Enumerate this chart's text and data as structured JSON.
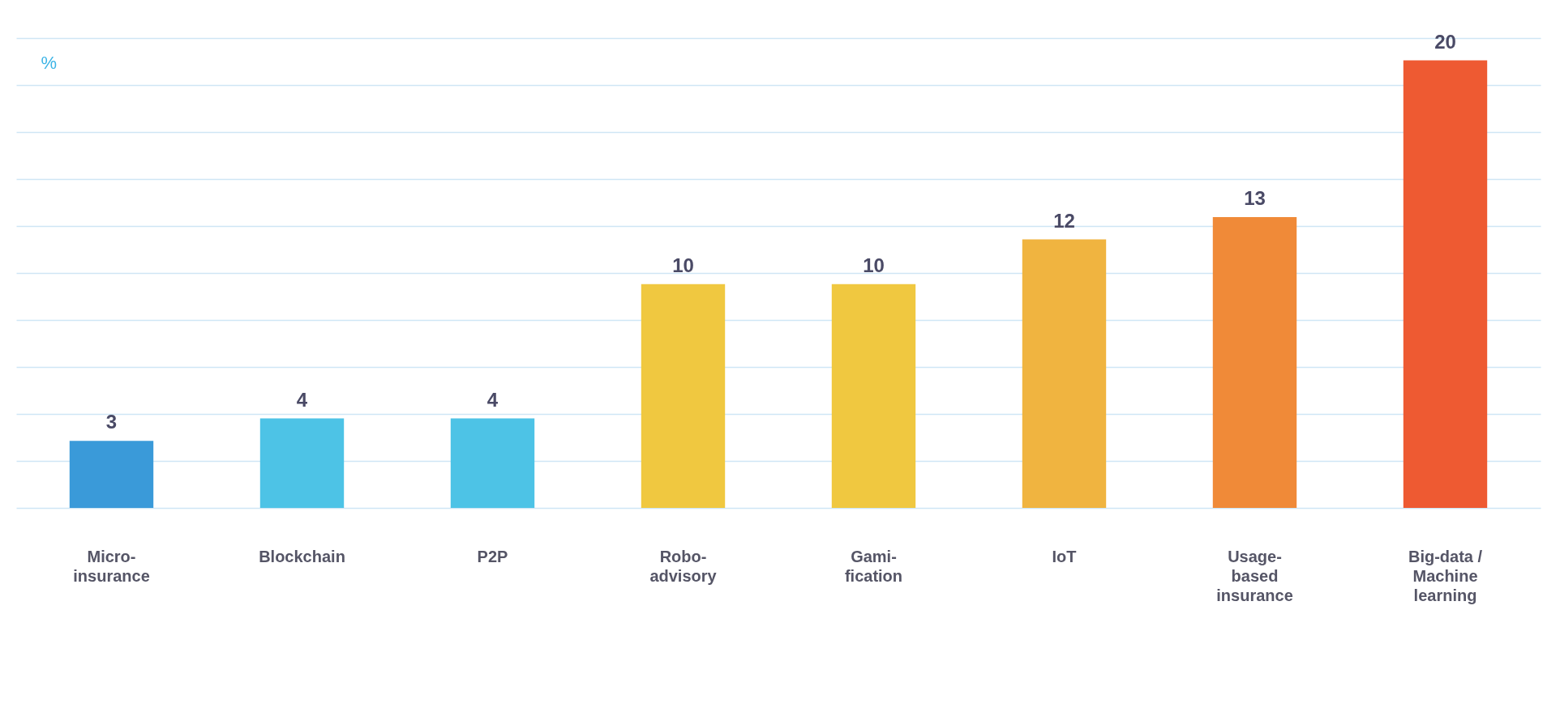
{
  "chart_data": {
    "type": "bar",
    "ylabel": "%",
    "categories": [
      "Micro-\ninsurance",
      "Blockchain",
      "P2P",
      "Robo-\nadvisory",
      "Gami-\nfication",
      "IoT",
      "Usage-\nbased\ninsurance",
      "Big-data /\nMachine\nlearning"
    ],
    "values": [
      3,
      4,
      4,
      10,
      10,
      12,
      13,
      20
    ],
    "colors": [
      "#3a9ad9",
      "#4dc3e6",
      "#4dc3e6",
      "#f0c840",
      "#f0c840",
      "#f0b440",
      "#f08a38",
      "#ee5a32"
    ],
    "ylim": [
      0,
      21
    ],
    "yticks": [
      {
        "value": 0,
        "label": null
      },
      {
        "value": 2.1,
        "label": null
      },
      {
        "value": 4.2,
        "label": null
      },
      {
        "value": 6.3,
        "label": null
      },
      {
        "value": 8.4,
        "label": null
      },
      {
        "value": 10.5,
        "label": null
      },
      {
        "value": 12.6,
        "label": null
      },
      {
        "value": 14.7,
        "label": null
      },
      {
        "value": 16.8,
        "label": null
      },
      {
        "value": 18.9,
        "label": null
      },
      {
        "value": 21,
        "label": null
      }
    ],
    "grid": "y",
    "data_labels": true
  }
}
